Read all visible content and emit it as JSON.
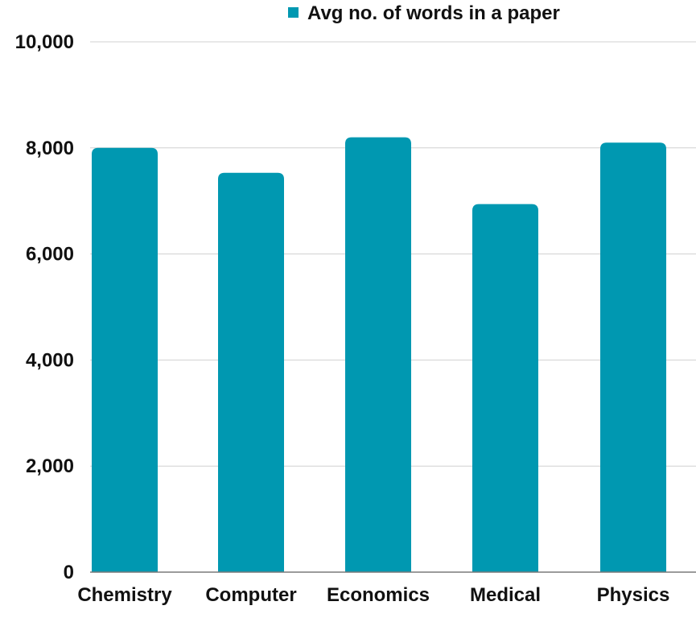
{
  "chart_data": {
    "type": "bar",
    "categories": [
      "Chemistry",
      "Computer",
      "Economics",
      "Medical",
      "Physics"
    ],
    "series": [
      {
        "name": "Avg no. of words in a paper",
        "values": [
          8000,
          7530,
          8200,
          6940,
          8100
        ],
        "color": "#0098B1"
      }
    ],
    "ylim": [
      0,
      10000
    ],
    "yticks": [
      0,
      2000,
      4000,
      6000,
      8000,
      10000
    ],
    "ytick_labels": [
      "0",
      "2,000",
      "4,000",
      "6,000",
      "8,000",
      "10,000"
    ],
    "grid": true,
    "legend_position": "top"
  }
}
